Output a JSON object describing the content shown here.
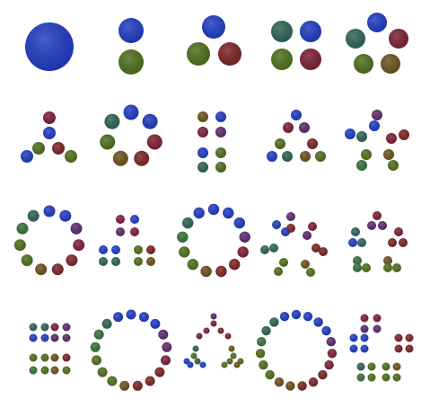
{
  "figure": {
    "description_visible_text": "",
    "palette": {
      "blue": "#1f3bc0",
      "green": "#4e6e1c",
      "red": "#7a2424",
      "teal": "#2e6256",
      "maroon": "#7b1f35",
      "olive": "#6b521c",
      "purple": "#5b2a6e",
      "darkgreen": "#37703a"
    },
    "rows": [
      {
        "label": "",
        "cells": [
          {
            "pattern": "single",
            "count": 1
          },
          {
            "pattern": "pair",
            "count": 2
          },
          {
            "pattern": "triangle",
            "count": 3
          },
          {
            "pattern": "square",
            "count": 4
          },
          {
            "pattern": "pentagon",
            "count": 5
          }
        ]
      },
      {
        "label": "",
        "cells": [
          {
            "pattern": "tri-arms",
            "count": 6
          },
          {
            "pattern": "ring",
            "count": 7
          },
          {
            "pattern": "grid-2x4",
            "count": 8
          },
          {
            "pattern": "pyramid",
            "count": 9
          },
          {
            "pattern": "star-pairs",
            "count": 10
          }
        ]
      },
      {
        "label": "",
        "cells": [
          {
            "pattern": "ring",
            "count": 11
          },
          {
            "pattern": "clusters",
            "count": 12
          },
          {
            "pattern": "ring",
            "count": 13
          },
          {
            "pattern": "star-sparse",
            "count": 14
          },
          {
            "pattern": "pentagon-clusters",
            "count": 15
          }
        ]
      },
      {
        "label": "",
        "cells": [
          {
            "pattern": "quad-clusters",
            "count": 16
          },
          {
            "pattern": "ring",
            "count": 17
          },
          {
            "pattern": "tri-clusters",
            "count": 18
          },
          {
            "pattern": "ring",
            "count": 19
          },
          {
            "pattern": "hex-clusters",
            "count": 20
          }
        ]
      }
    ]
  }
}
